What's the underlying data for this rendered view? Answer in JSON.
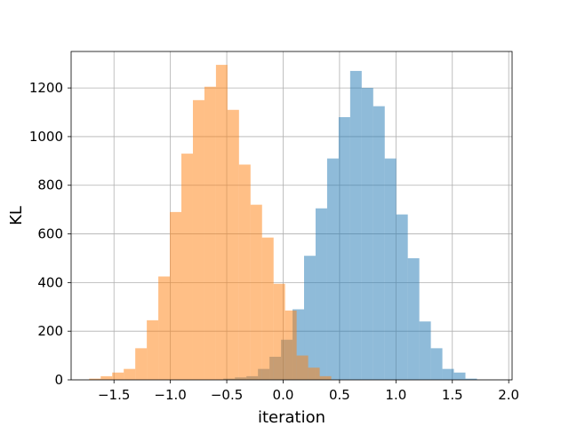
{
  "chart_data": {
    "type": "histogram",
    "xlabel": "iteration",
    "ylabel": "KL",
    "xlim": [
      -1.88,
      2.03
    ],
    "ylim": [
      0,
      1350
    ],
    "xticks": [
      -1.5,
      -1.0,
      -0.5,
      0.0,
      0.5,
      1.0,
      1.5,
      2.0
    ],
    "xtick_labels": [
      "−1.5",
      "−1.0",
      "−0.5",
      "0.0",
      "0.5",
      "1.0",
      "1.5",
      "2.0"
    ],
    "yticks": [
      0,
      200,
      400,
      600,
      800,
      1000,
      1200
    ],
    "ytick_labels": [
      "0",
      "200",
      "400",
      "600",
      "800",
      "1000",
      "1200"
    ],
    "grid": true,
    "series": [
      {
        "color": "#1f77b4",
        "opacity": 0.5,
        "bin_start": -0.53,
        "bin_width": 0.1022,
        "counts": [
          5,
          10,
          15,
          45,
          95,
          165,
          290,
          510,
          705,
          910,
          1080,
          1270,
          1200,
          1125,
          910,
          680,
          500,
          240,
          130,
          45,
          30,
          5
        ]
      },
      {
        "color": "#ff7f0e",
        "opacity": 0.5,
        "bin_start": -1.72,
        "bin_width": 0.1022,
        "counts": [
          5,
          15,
          30,
          45,
          130,
          245,
          425,
          690,
          930,
          1150,
          1205,
          1295,
          1110,
          885,
          720,
          585,
          395,
          285,
          100,
          50,
          15
        ]
      }
    ]
  }
}
